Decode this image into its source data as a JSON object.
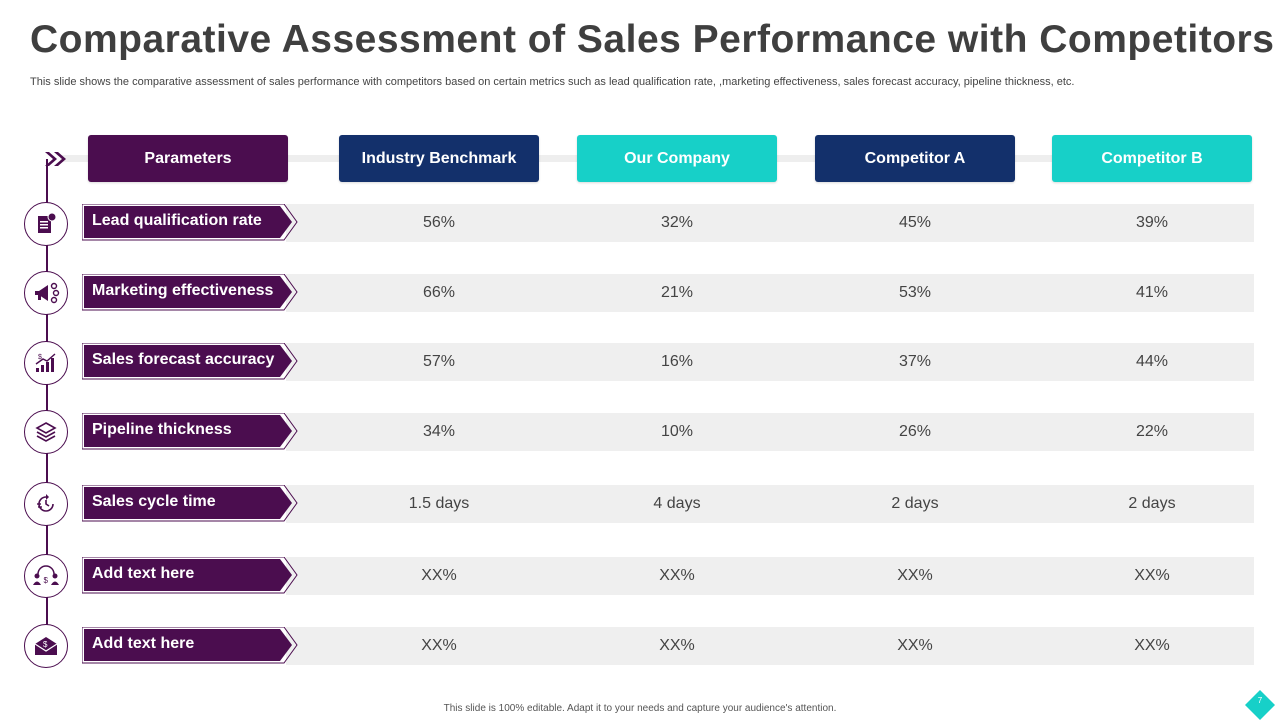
{
  "title": "Comparative Assessment of Sales Performance with Competitors",
  "subtitle": "This slide shows the comparative assessment of sales performance with competitors based on certain metrics such as lead qualification rate, ,marketing effectiveness, sales forecast accuracy, pipeline thickness, etc.",
  "colors": {
    "purple": "#4b0d4f",
    "navy": "#13306b",
    "teal": "#17d0c8",
    "band": "#efefef"
  },
  "headers": {
    "parameters": "Parameters",
    "industry": "Industry Benchmark",
    "our_company": "Our Company",
    "competitor_a": "Competitor A",
    "competitor_b": "Competitor B"
  },
  "rows": [
    {
      "icon": "document-icon",
      "label": "Lead qualification rate",
      "values": [
        "56%",
        "32%",
        "45%",
        "39%"
      ]
    },
    {
      "icon": "megaphone-icon",
      "label": "Marketing effectiveness",
      "values": [
        "66%",
        "21%",
        "53%",
        "41%"
      ]
    },
    {
      "icon": "growth-chart-icon",
      "label": "Sales forecast accuracy",
      "values": [
        "57%",
        "16%",
        "37%",
        "44%"
      ]
    },
    {
      "icon": "layers-icon",
      "label": "Pipeline thickness",
      "values": [
        "34%",
        "10%",
        "26%",
        "22%"
      ]
    },
    {
      "icon": "clock-cycle-icon",
      "label": "Sales cycle time",
      "values": [
        "1.5 days",
        "4 days",
        "2 days",
        "2 days"
      ]
    },
    {
      "icon": "people-dollar-icon",
      "label": "Add text here",
      "values": [
        "XX%",
        "XX%",
        "XX%",
        "XX%"
      ]
    },
    {
      "icon": "envelope-dollar-icon",
      "label": "Add text here",
      "values": [
        "XX%",
        "XX%",
        "XX%",
        "XX%"
      ]
    }
  ],
  "footer": "This slide is 100% editable.  Adapt it to your needs and capture your audience's attention.",
  "page_number": "7"
}
